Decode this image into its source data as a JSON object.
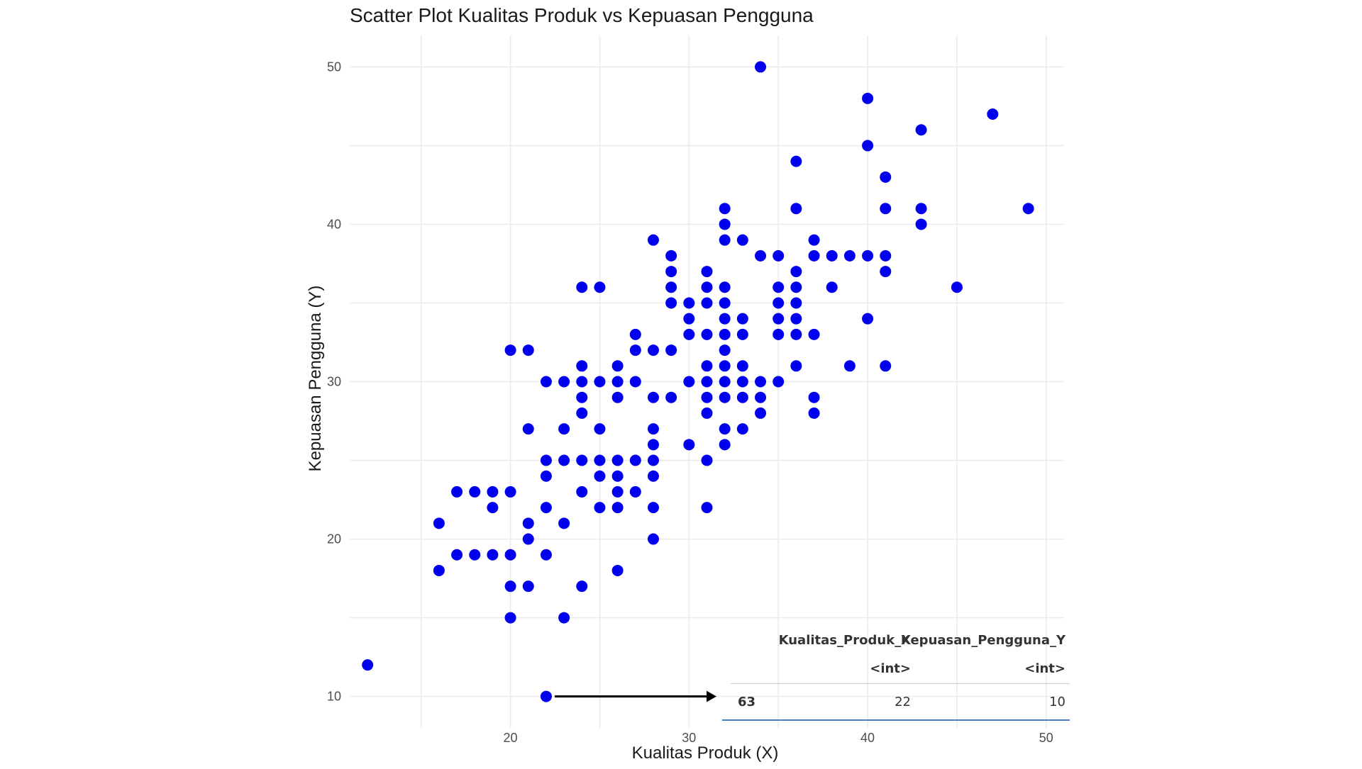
{
  "chart_data": {
    "type": "scatter",
    "title": "Scatter Plot Kualitas Produk vs Kepuasan Pengguna",
    "xlabel": "Kualitas Produk (X)",
    "ylabel": "Kepuasan Pengguna (Y)",
    "xlim": [
      11,
      51
    ],
    "ylim": [
      8,
      52
    ],
    "xticks": [
      20,
      30,
      40,
      50
    ],
    "yticks": [
      10,
      20,
      30,
      40,
      50
    ],
    "grid": true,
    "point_color": "#0000ee",
    "points": [
      [
        12,
        12
      ],
      [
        22,
        10
      ],
      [
        16,
        21
      ],
      [
        16,
        18
      ],
      [
        17,
        23
      ],
      [
        17,
        19
      ],
      [
        18,
        23
      ],
      [
        18,
        19
      ],
      [
        19,
        23
      ],
      [
        19,
        22
      ],
      [
        19,
        19
      ],
      [
        20,
        32
      ],
      [
        20,
        23
      ],
      [
        20,
        19
      ],
      [
        20,
        17
      ],
      [
        20,
        15
      ],
      [
        21,
        32
      ],
      [
        21,
        27
      ],
      [
        21,
        21
      ],
      [
        21,
        20
      ],
      [
        21,
        17
      ],
      [
        22,
        30
      ],
      [
        22,
        25
      ],
      [
        22,
        24
      ],
      [
        22,
        22
      ],
      [
        22,
        19
      ],
      [
        23,
        30
      ],
      [
        23,
        27
      ],
      [
        23,
        25
      ],
      [
        23,
        21
      ],
      [
        23,
        15
      ],
      [
        24,
        36
      ],
      [
        24,
        31
      ],
      [
        24,
        30
      ],
      [
        24,
        29
      ],
      [
        24,
        28
      ],
      [
        24,
        25
      ],
      [
        24,
        23
      ],
      [
        24,
        17
      ],
      [
        25,
        36
      ],
      [
        25,
        30
      ],
      [
        25,
        27
      ],
      [
        25,
        25
      ],
      [
        25,
        24
      ],
      [
        25,
        22
      ],
      [
        26,
        31
      ],
      [
        26,
        30
      ],
      [
        26,
        29
      ],
      [
        26,
        25
      ],
      [
        26,
        24
      ],
      [
        26,
        23
      ],
      [
        26,
        22
      ],
      [
        26,
        18
      ],
      [
        27,
        33
      ],
      [
        27,
        32
      ],
      [
        27,
        30
      ],
      [
        27,
        25
      ],
      [
        27,
        23
      ],
      [
        28,
        39
      ],
      [
        28,
        32
      ],
      [
        28,
        29
      ],
      [
        28,
        27
      ],
      [
        28,
        26
      ],
      [
        28,
        25
      ],
      [
        28,
        24
      ],
      [
        28,
        22
      ],
      [
        28,
        20
      ],
      [
        29,
        38
      ],
      [
        29,
        37
      ],
      [
        29,
        36
      ],
      [
        29,
        35
      ],
      [
        29,
        32
      ],
      [
        29,
        29
      ],
      [
        30,
        35
      ],
      [
        30,
        34
      ],
      [
        30,
        33
      ],
      [
        30,
        30
      ],
      [
        30,
        26
      ],
      [
        31,
        37
      ],
      [
        31,
        36
      ],
      [
        31,
        35
      ],
      [
        31,
        33
      ],
      [
        31,
        31
      ],
      [
        31,
        30
      ],
      [
        31,
        29
      ],
      [
        31,
        28
      ],
      [
        31,
        25
      ],
      [
        31,
        22
      ],
      [
        32,
        41
      ],
      [
        32,
        40
      ],
      [
        32,
        39
      ],
      [
        32,
        36
      ],
      [
        32,
        35
      ],
      [
        32,
        34
      ],
      [
        32,
        33
      ],
      [
        32,
        32
      ],
      [
        32,
        31
      ],
      [
        32,
        30
      ],
      [
        32,
        29
      ],
      [
        32,
        27
      ],
      [
        32,
        26
      ],
      [
        33,
        39
      ],
      [
        33,
        34
      ],
      [
        33,
        33
      ],
      [
        33,
        31
      ],
      [
        33,
        30
      ],
      [
        33,
        29
      ],
      [
        33,
        27
      ],
      [
        34,
        50
      ],
      [
        34,
        38
      ],
      [
        34,
        30
      ],
      [
        34,
        29
      ],
      [
        34,
        28
      ],
      [
        35,
        38
      ],
      [
        35,
        36
      ],
      [
        35,
        35
      ],
      [
        35,
        34
      ],
      [
        35,
        33
      ],
      [
        35,
        30
      ],
      [
        36,
        44
      ],
      [
        36,
        41
      ],
      [
        36,
        37
      ],
      [
        36,
        36
      ],
      [
        36,
        35
      ],
      [
        36,
        34
      ],
      [
        36,
        33
      ],
      [
        36,
        31
      ],
      [
        37,
        39
      ],
      [
        37,
        38
      ],
      [
        37,
        33
      ],
      [
        37,
        29
      ],
      [
        37,
        28
      ],
      [
        38,
        38
      ],
      [
        38,
        36
      ],
      [
        39,
        38
      ],
      [
        39,
        31
      ],
      [
        40,
        48
      ],
      [
        40,
        45
      ],
      [
        40,
        38
      ],
      [
        40,
        34
      ],
      [
        41,
        43
      ],
      [
        41,
        41
      ],
      [
        41,
        38
      ],
      [
        41,
        37
      ],
      [
        41,
        31
      ],
      [
        43,
        46
      ],
      [
        43,
        41
      ],
      [
        43,
        40
      ],
      [
        45,
        36
      ],
      [
        47,
        47
      ],
      [
        49,
        41
      ]
    ],
    "highlight": {
      "point": [
        22,
        10
      ],
      "table": {
        "columns": [
          "Kualitas_Produk_X",
          "Kepuasan_Pengguna_Y"
        ],
        "types": [
          "<int>",
          "<int>"
        ],
        "rows": [
          {
            "rowname": "63",
            "values": [
              "22",
              "10"
            ]
          }
        ]
      }
    }
  }
}
